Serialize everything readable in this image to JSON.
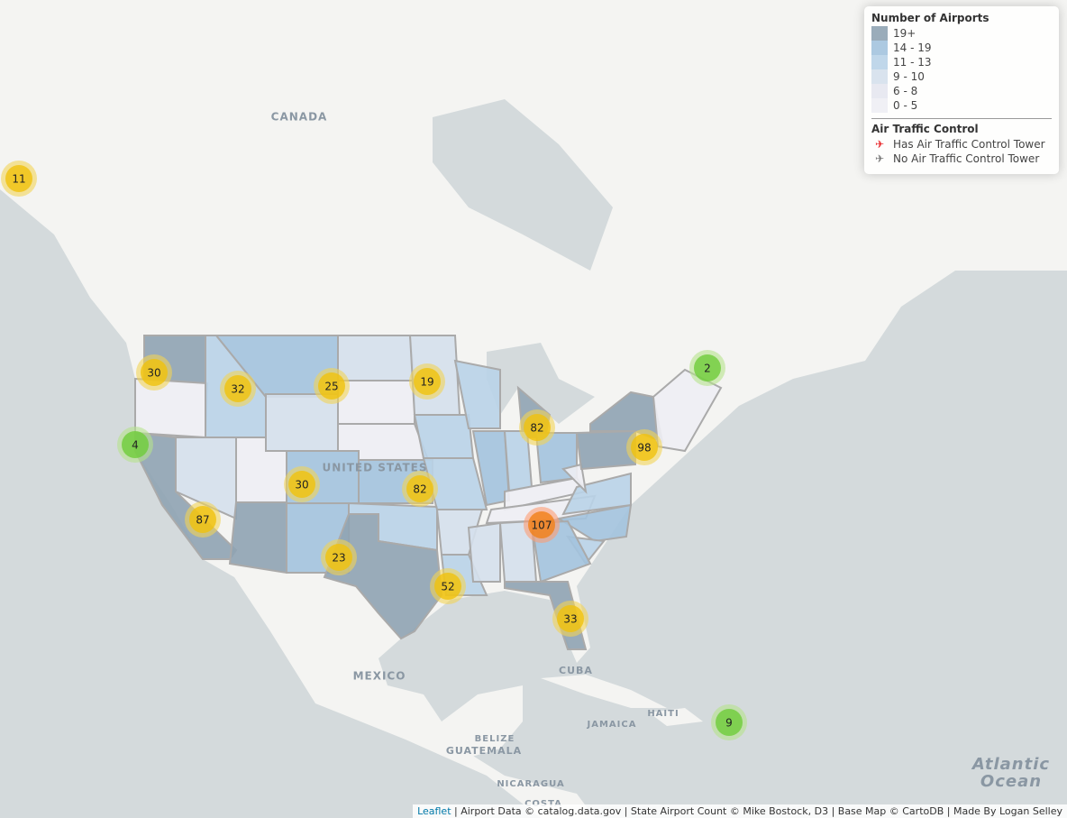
{
  "places": [
    "CANADA",
    "UNITED STATES",
    "MEXICO",
    "CUBA",
    "JAMAICA",
    "HAITI",
    "BELIZE",
    "GUATEMALA",
    "NICARAGUA",
    "COSTA",
    "Atlantic",
    "Ocean"
  ],
  "clusters": [
    11,
    30,
    32,
    25,
    19,
    2,
    4,
    82,
    98,
    30,
    82,
    87,
    107,
    23,
    52,
    33,
    9
  ],
  "legend": {
    "title": "Number of Airports",
    "items": [
      {
        "label": "19+",
        "color": "#8fa3b3"
      },
      {
        "label": "14 - 19",
        "color": "#a3c3de"
      },
      {
        "label": "11 - 13",
        "color": "#b9d3e8"
      },
      {
        "label": "9 - 10",
        "color": "#d5e0ec"
      },
      {
        "label": "6 - 8",
        "color": "#e5e7f0"
      },
      {
        "label": "0 - 5",
        "color": "#eeeef4"
      }
    ],
    "atc_title": "Air Traffic Control",
    "atc_items": [
      {
        "label": "Has Air Traffic Control Tower",
        "color": "#e8282b"
      },
      {
        "label": "No Air Traffic Control Tower",
        "color": "#777777"
      }
    ]
  },
  "attribution": {
    "link": "Leaflet",
    "text": "| Airport Data © catalog.data.gov | State Airport Count © Mike Bostock, D3 | Base Map © CartoDB | Made By Logan Selley"
  }
}
